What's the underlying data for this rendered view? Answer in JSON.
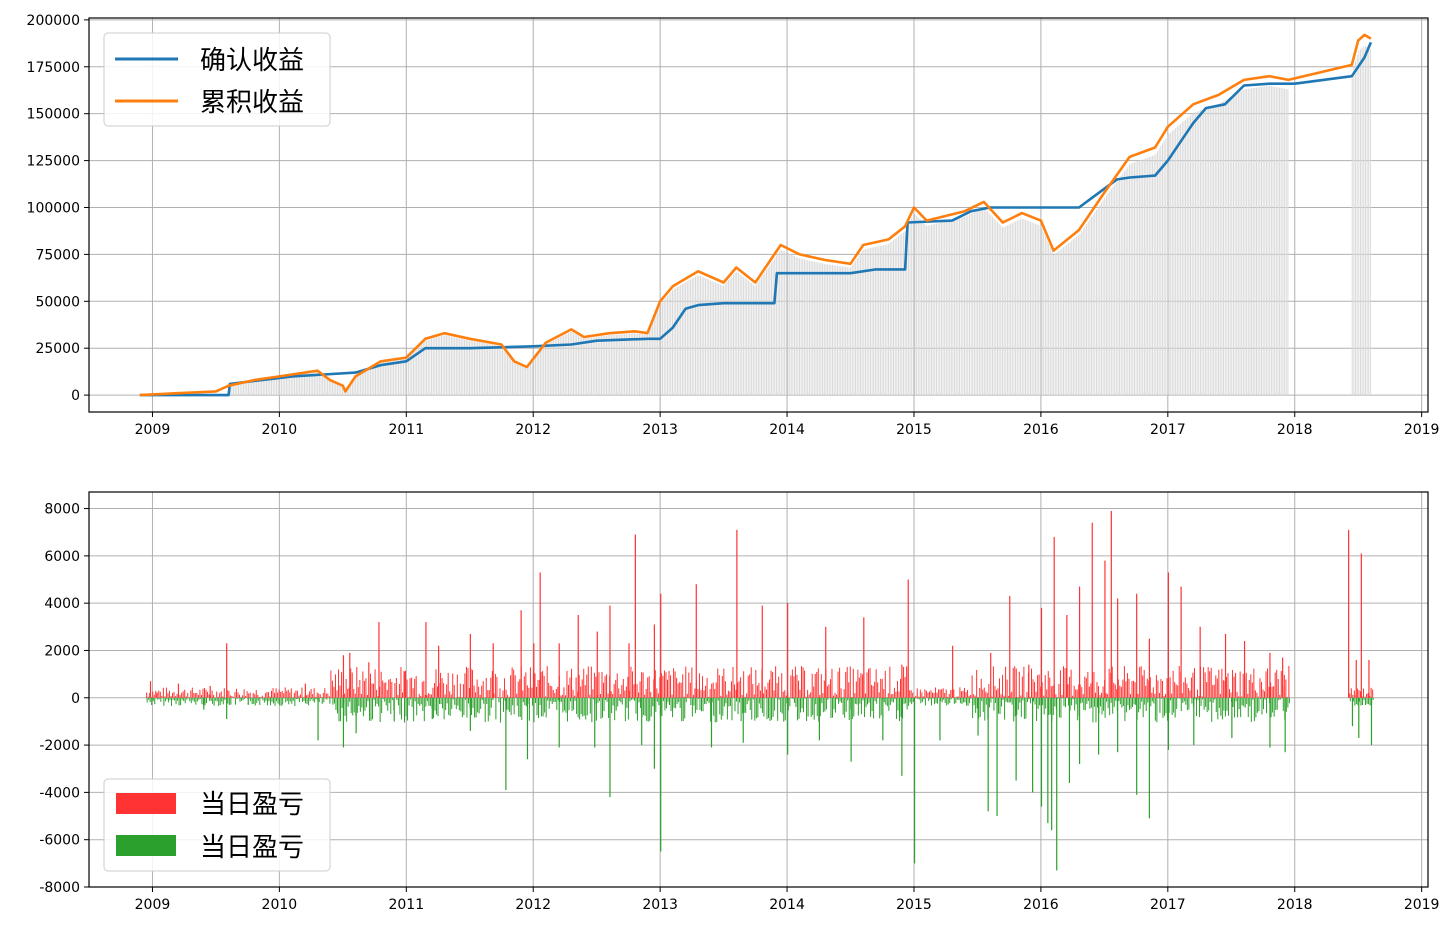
{
  "chart_data": [
    {
      "type": "line",
      "title": "",
      "xlabel": "",
      "ylabel": "",
      "xlim": [
        2008.5,
        2019.05
      ],
      "ylim": [
        -9000,
        201000
      ],
      "grid": true,
      "legend_position": "top-left",
      "x_ticks": [
        "2009",
        "2010",
        "2011",
        "2012",
        "2013",
        "2014",
        "2015",
        "2016",
        "2017",
        "2018",
        "2019"
      ],
      "y_ticks": [
        "0",
        "25000",
        "50000",
        "75000",
        "100000",
        "125000",
        "150000",
        "175000",
        "200000"
      ],
      "y_tick_values": [
        0,
        25000,
        50000,
        75000,
        100000,
        125000,
        150000,
        175000,
        200000
      ],
      "series": [
        {
          "name": "确认收益",
          "color": "#1f77b4",
          "x": [
            2008.9,
            2009.6,
            2009.61,
            2010.1,
            2010.35,
            2010.6,
            2010.8,
            2011.0,
            2011.15,
            2011.5,
            2012.0,
            2012.3,
            2012.5,
            2012.9,
            2013.0,
            2013.1,
            2013.2,
            2013.3,
            2013.5,
            2013.9,
            2013.92,
            2014.5,
            2014.7,
            2014.93,
            2014.95,
            2015.3,
            2015.45,
            2015.6,
            2016.0,
            2016.3,
            2016.4,
            2016.5,
            2016.6,
            2016.7,
            2016.9,
            2017.0,
            2017.1,
            2017.2,
            2017.3,
            2017.45,
            2017.6,
            2017.8,
            2018.0,
            2018.45,
            2018.5,
            2018.55,
            2018.6
          ],
          "y": [
            0,
            0,
            6000,
            10000,
            11000,
            12000,
            16000,
            18000,
            25000,
            25000,
            26000,
            27000,
            29000,
            30000,
            30000,
            36000,
            46000,
            48000,
            49000,
            49000,
            65000,
            65000,
            67000,
            67000,
            92000,
            93000,
            98000,
            100000,
            100000,
            100000,
            105000,
            110000,
            115000,
            116000,
            117000,
            125000,
            135000,
            145000,
            153000,
            155000,
            165000,
            166000,
            166000,
            170000,
            175000,
            180000,
            188000
          ]
        },
        {
          "name": "累积收益",
          "color": "#ff7f0e",
          "x": [
            2008.9,
            2009.2,
            2009.5,
            2009.6,
            2009.8,
            2010.0,
            2010.3,
            2010.4,
            2010.5,
            2010.52,
            2010.6,
            2010.8,
            2011.0,
            2011.15,
            2011.3,
            2011.5,
            2011.75,
            2011.85,
            2011.95,
            2012.1,
            2012.3,
            2012.4,
            2012.6,
            2012.8,
            2012.9,
            2013.0,
            2013.1,
            2013.3,
            2013.5,
            2013.6,
            2013.75,
            2013.95,
            2014.1,
            2014.3,
            2014.5,
            2014.6,
            2014.8,
            2014.93,
            2015.0,
            2015.1,
            2015.4,
            2015.55,
            2015.7,
            2015.85,
            2016.0,
            2016.1,
            2016.3,
            2016.5,
            2016.7,
            2016.9,
            2017.0,
            2017.2,
            2017.4,
            2017.6,
            2017.8,
            2017.95,
            2018.45,
            2018.5,
            2018.55,
            2018.6
          ],
          "y": [
            0,
            1000,
            2000,
            5000,
            8000,
            10000,
            13000,
            8000,
            5000,
            2000,
            10000,
            18000,
            20000,
            30000,
            33000,
            30000,
            27000,
            18000,
            15000,
            28000,
            35000,
            31000,
            33000,
            34000,
            33000,
            50000,
            58000,
            66000,
            60000,
            68000,
            60000,
            80000,
            75000,
            72000,
            70000,
            80000,
            83000,
            90000,
            100000,
            93000,
            98000,
            103000,
            92000,
            97000,
            93000,
            77000,
            88000,
            108000,
            127000,
            132000,
            143000,
            155000,
            160000,
            168000,
            170000,
            168000,
            176000,
            189000,
            192000,
            190000
          ]
        }
      ]
    },
    {
      "type": "bar",
      "title": "",
      "xlabel": "",
      "ylabel": "",
      "xlim": [
        2008.5,
        2019.05
      ],
      "ylim": [
        -8000,
        8700
      ],
      "grid": true,
      "legend_position": "bottom-left",
      "x_ticks": [
        "2009",
        "2010",
        "2011",
        "2012",
        "2013",
        "2014",
        "2015",
        "2016",
        "2017",
        "2018",
        "2019"
      ],
      "y_ticks": [
        "8000",
        "6000",
        "4000",
        "2000",
        "0",
        "-2000",
        "-4000",
        "-6000",
        "-8000"
      ],
      "y_tick_values": [
        8000,
        6000,
        4000,
        2000,
        0,
        -2000,
        -4000,
        -6000,
        -8000
      ],
      "series": [
        {
          "name": "当日盈亏",
          "color": "#ff3333",
          "x": [
            2008.98,
            2009.03,
            2009.2,
            2009.45,
            2009.58,
            2010.2,
            2010.5,
            2010.55,
            2010.7,
            2010.78,
            2010.98,
            2011.15,
            2011.25,
            2011.5,
            2011.68,
            2011.9,
            2012.0,
            2012.05,
            2012.2,
            2012.35,
            2012.5,
            2012.6,
            2012.75,
            2012.8,
            2012.95,
            2013.0,
            2013.28,
            2013.6,
            2013.8,
            2014.0,
            2014.3,
            2014.6,
            2014.9,
            2014.95,
            2015.3,
            2015.6,
            2015.75,
            2015.9,
            2016.0,
            2016.1,
            2016.2,
            2016.3,
            2016.4,
            2016.5,
            2016.55,
            2016.6,
            2016.75,
            2016.85,
            2017.0,
            2017.1,
            2017.25,
            2017.45,
            2017.6,
            2017.8,
            2017.9,
            2018.42,
            2018.48,
            2018.52,
            2018.58
          ],
          "values": [
            700,
            200,
            600,
            500,
            2300,
            600,
            1800,
            1900,
            1500,
            3200,
            1100,
            3200,
            2200,
            2700,
            2300,
            3700,
            2300,
            5300,
            2300,
            3500,
            2800,
            3900,
            2300,
            6900,
            3100,
            4400,
            4800,
            7100,
            3900,
            4000,
            3000,
            3400,
            1400,
            5000,
            2200,
            1900,
            4300,
            1400,
            3800,
            6800,
            3500,
            4700,
            7400,
            5800,
            7900,
            4200,
            4400,
            2500,
            5300,
            4700,
            3000,
            2700,
            2400,
            1900,
            1700,
            7100,
            1600,
            6100,
            1600
          ]
        },
        {
          "name": "当日盈亏",
          "color": "#2ca02c",
          "x": [
            2009.0,
            2009.4,
            2009.58,
            2009.75,
            2010.3,
            2010.5,
            2010.6,
            2010.9,
            2011.2,
            2011.5,
            2011.78,
            2011.95,
            2012.2,
            2012.48,
            2012.6,
            2012.85,
            2012.95,
            2013.0,
            2013.4,
            2013.65,
            2014.0,
            2014.25,
            2014.5,
            2014.75,
            2014.9,
            2015.0,
            2015.2,
            2015.5,
            2015.58,
            2015.65,
            2015.8,
            2015.93,
            2016.0,
            2016.05,
            2016.08,
            2016.12,
            2016.22,
            2016.3,
            2016.45,
            2016.6,
            2016.75,
            2016.85,
            2017.0,
            2017.2,
            2017.5,
            2017.8,
            2017.92,
            2018.45,
            2018.5,
            2018.6
          ],
          "values": [
            -100,
            -500,
            -900,
            -300,
            -1800,
            -2100,
            -1500,
            -1000,
            -900,
            -1400,
            -3900,
            -2600,
            -2100,
            -2100,
            -4200,
            -2000,
            -3000,
            -6500,
            -2100,
            -1900,
            -2400,
            -1800,
            -2700,
            -1800,
            -3300,
            -7000,
            -1800,
            -1600,
            -4800,
            -5000,
            -3500,
            -4000,
            -4600,
            -5300,
            -5600,
            -7300,
            -3600,
            -2800,
            -2400,
            -2300,
            -4100,
            -5100,
            -2200,
            -2000,
            -1700,
            -2100,
            -2300,
            -1200,
            -1700,
            -2000
          ]
        }
      ]
    }
  ],
  "legends": {
    "top": [
      "确认收益",
      "累积收益"
    ],
    "bottom": [
      "当日盈亏",
      "当日盈亏"
    ]
  }
}
